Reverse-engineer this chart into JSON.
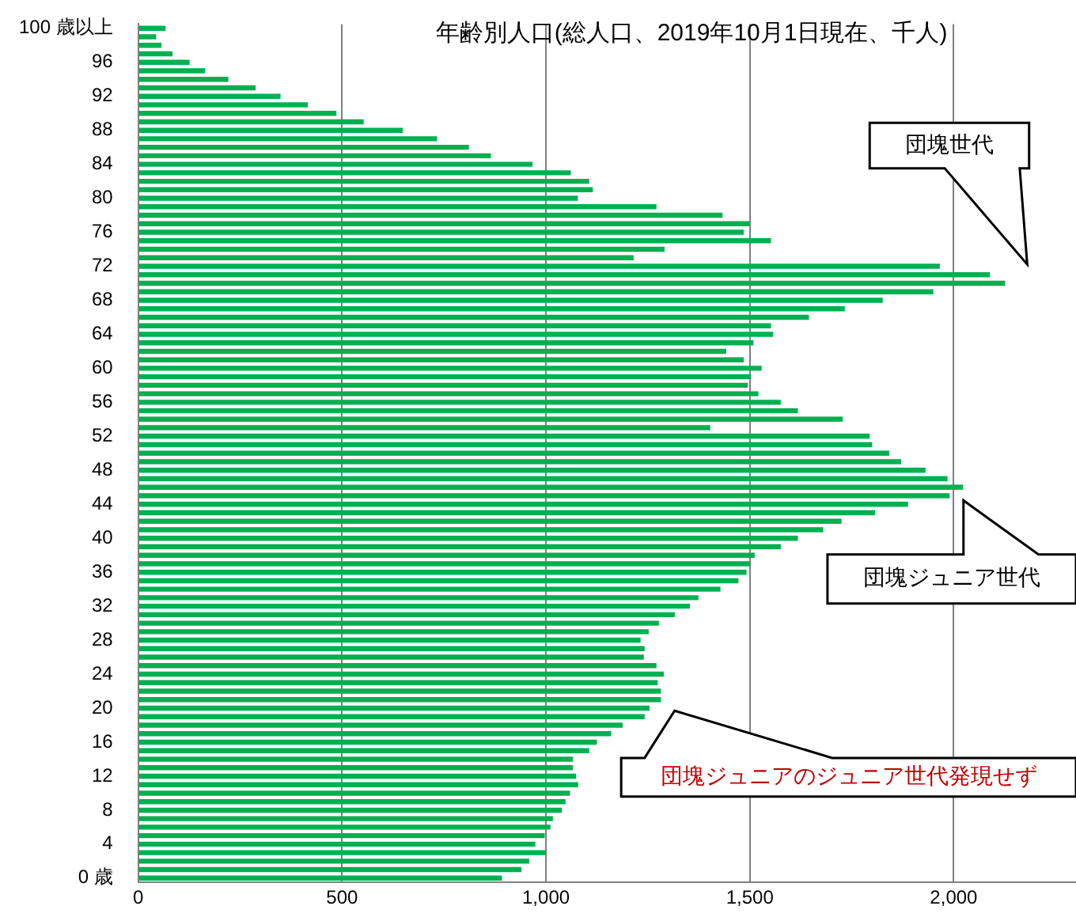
{
  "chart_data": {
    "type": "bar",
    "orientation": "horizontal",
    "title": "年齢別人口(総人口、2019年10月1日現在、千人)",
    "categories": [
      "100 歳以上",
      null,
      null,
      null,
      "96",
      null,
      null,
      null,
      "92",
      null,
      null,
      null,
      "88",
      null,
      null,
      null,
      "84",
      null,
      null,
      null,
      "80",
      null,
      null,
      null,
      "76",
      null,
      null,
      null,
      "72",
      null,
      null,
      null,
      "68",
      null,
      null,
      null,
      "64",
      null,
      null,
      null,
      "60",
      null,
      null,
      null,
      "56",
      null,
      null,
      null,
      "52",
      null,
      null,
      null,
      "48",
      null,
      null,
      null,
      "44",
      null,
      null,
      null,
      "40",
      null,
      null,
      null,
      "36",
      null,
      null,
      null,
      "32",
      null,
      null,
      null,
      "28",
      null,
      null,
      null,
      "24",
      null,
      null,
      null,
      "20",
      null,
      null,
      null,
      "16",
      null,
      null,
      null,
      "12",
      null,
      null,
      null,
      "8",
      null,
      null,
      null,
      "4",
      null,
      null,
      null,
      "0 歳"
    ],
    "values": [
      67,
      44,
      57,
      84,
      126,
      164,
      221,
      288,
      349,
      416,
      486,
      553,
      649,
      733,
      811,
      865,
      967,
      1061,
      1106,
      1115,
      1078,
      1271,
      1433,
      1499,
      1485,
      1552,
      1291,
      1215,
      1966,
      2089,
      2126,
      1950,
      1826,
      1733,
      1645,
      1552,
      1557,
      1509,
      1442,
      1485,
      1529,
      1502,
      1495,
      1521,
      1576,
      1618,
      1728,
      1403,
      1794,
      1800,
      1842,
      1871,
      1931,
      1985,
      2023,
      1990,
      1888,
      1807,
      1725,
      1680,
      1618,
      1576,
      1512,
      1500,
      1492,
      1472,
      1428,
      1374,
      1353,
      1316,
      1277,
      1252,
      1232,
      1242,
      1240,
      1271,
      1289,
      1274,
      1282,
      1282,
      1254,
      1242,
      1188,
      1160,
      1125,
      1106,
      1066,
      1066,
      1074,
      1079,
      1059,
      1048,
      1039,
      1017,
      1011,
      997,
      974,
      999,
      959,
      940,
      892
    ],
    "color": "#00b050",
    "xlim": [
      0,
      2300
    ],
    "xticks": [
      0,
      {
        "value": 500,
        "label": "500"
      },
      {
        "value": 1000,
        "label": "1,000"
      },
      {
        "value": 1500,
        "label": "1,500"
      },
      {
        "value": 2000,
        "label": "2,000"
      }
    ],
    "grid": "x",
    "annotations": [
      "団塊世代",
      "団塊ジュニア世代",
      "団塊ジュニアのジュニア世代発現せず"
    ]
  }
}
